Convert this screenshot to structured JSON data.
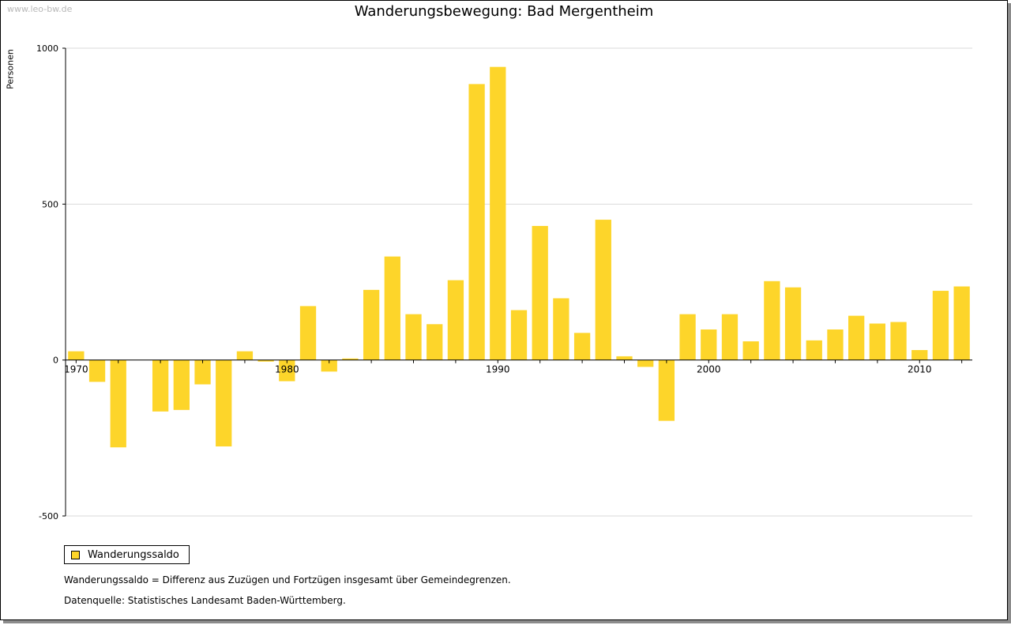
{
  "watermark": "www.leo-bw.de",
  "chart_data": {
    "type": "bar",
    "title": "Wanderungsbewegung: Bad Mergentheim",
    "ylabel": "Personen",
    "xlabel": "",
    "ylim": [
      -500,
      1000
    ],
    "y_ticks": [
      -500,
      0,
      500,
      1000
    ],
    "x_ticks": [
      1970,
      1980,
      1990,
      2000,
      2010
    ],
    "grid": "horizontal",
    "legend_position": "bottom-left",
    "categories": [
      1970,
      1971,
      1972,
      1973,
      1974,
      1975,
      1976,
      1977,
      1978,
      1979,
      1980,
      1981,
      1982,
      1983,
      1984,
      1985,
      1986,
      1987,
      1988,
      1989,
      1990,
      1991,
      1992,
      1993,
      1994,
      1995,
      1996,
      1997,
      1998,
      1999,
      2000,
      2001,
      2002,
      2003,
      2004,
      2005,
      2006,
      2007,
      2008,
      2009,
      2010,
      2011,
      2012
    ],
    "series": [
      {
        "name": "Wanderungssaldo",
        "color": "#fdd52a",
        "values": [
          28,
          -70,
          -280,
          0,
          -165,
          -160,
          -78,
          -277,
          28,
          -5,
          -68,
          173,
          -37,
          5,
          225,
          332,
          147,
          115,
          256,
          885,
          940,
          160,
          430,
          198,
          87,
          450,
          12,
          -22,
          -195,
          147,
          98,
          147,
          60,
          253,
          233,
          63,
          98,
          142,
          117,
          122,
          32,
          222,
          236
        ]
      }
    ]
  },
  "notes": {
    "definition": "Wanderungssaldo = Differenz aus Zuzügen und Fortzügen insgesamt über Gemeindegrenzen.",
    "source": "Datenquelle: Statistisches Landesamt Baden-Württemberg."
  }
}
